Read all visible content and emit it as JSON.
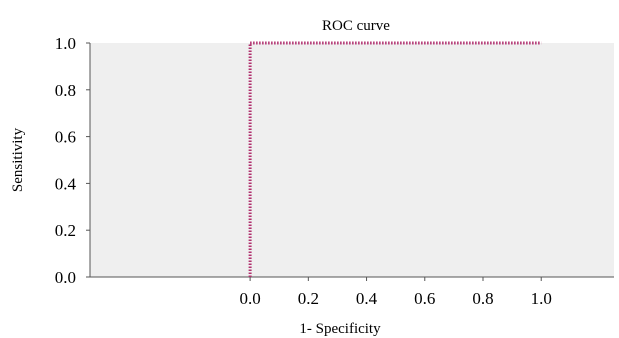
{
  "chart_data": {
    "type": "line",
    "title": "ROC curve",
    "xlabel": "1- Specificity",
    "ylabel": "Sensitivity",
    "xlim": [
      -0.55,
      1.25
    ],
    "ylim": [
      0.0,
      1.0
    ],
    "x_ticks": [
      0.0,
      0.2,
      0.4,
      0.6,
      0.8,
      1.0
    ],
    "x_tick_labels": [
      "0.0",
      "0.2",
      "0.4",
      "0.6",
      "0.8",
      "1.0"
    ],
    "y_ticks": [
      0.0,
      0.2,
      0.4,
      0.6,
      0.8,
      1.0
    ],
    "y_tick_labels": [
      "0.0",
      "0.2",
      "0.4",
      "0.6",
      "0.8",
      "1.0"
    ],
    "grid": false,
    "legend": "none",
    "series": [
      {
        "x": [
          0.0,
          0.0,
          1.0
        ],
        "y": [
          0.0,
          1.0,
          1.0
        ],
        "color": "#b0306e",
        "style": "dotted"
      }
    ],
    "colors": {
      "plot_background": "#efefef",
      "axis": "#555555",
      "curve": "#b0306e"
    }
  }
}
